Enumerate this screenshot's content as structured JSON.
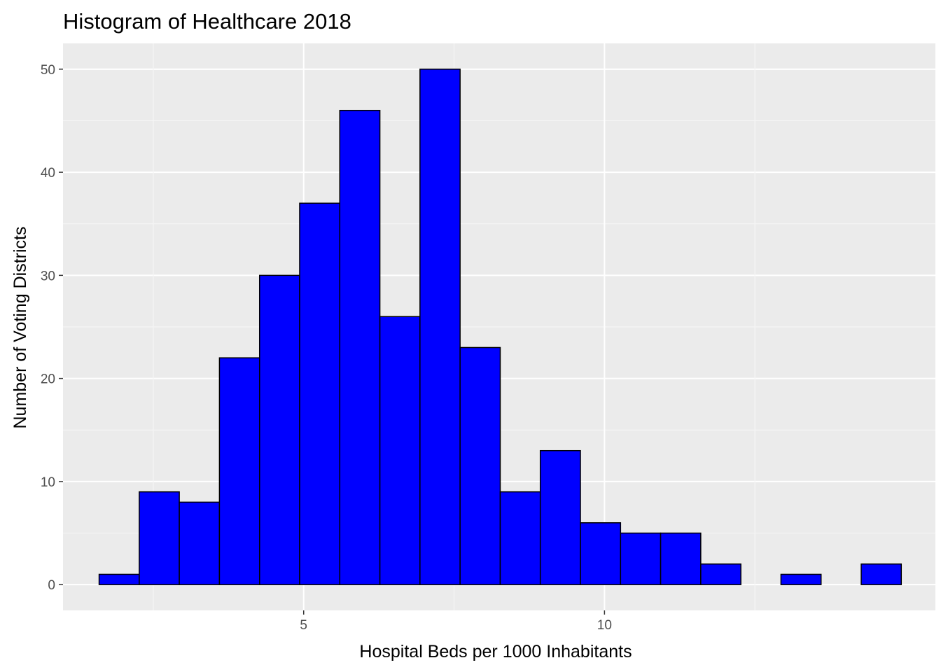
{
  "chart_data": {
    "type": "bar",
    "title": "Histogram of Healthcare 2018",
    "xlabel": "Hospital Beds per 1000 Inhabitants",
    "ylabel": "Number of Voting Districts",
    "bin_width": 0.6667,
    "bins": [
      {
        "x0": 1.6,
        "x1": 2.267,
        "count": 1
      },
      {
        "x0": 2.267,
        "x1": 2.933,
        "count": 9
      },
      {
        "x0": 2.933,
        "x1": 3.6,
        "count": 8
      },
      {
        "x0": 3.6,
        "x1": 4.267,
        "count": 22
      },
      {
        "x0": 4.267,
        "x1": 4.933,
        "count": 30
      },
      {
        "x0": 4.933,
        "x1": 5.6,
        "count": 37
      },
      {
        "x0": 5.6,
        "x1": 6.267,
        "count": 46
      },
      {
        "x0": 6.267,
        "x1": 6.933,
        "count": 26
      },
      {
        "x0": 6.933,
        "x1": 7.6,
        "count": 50
      },
      {
        "x0": 7.6,
        "x1": 8.267,
        "count": 23
      },
      {
        "x0": 8.267,
        "x1": 8.933,
        "count": 9
      },
      {
        "x0": 8.933,
        "x1": 9.6,
        "count": 13
      },
      {
        "x0": 9.6,
        "x1": 10.267,
        "count": 6
      },
      {
        "x0": 10.267,
        "x1": 10.933,
        "count": 5
      },
      {
        "x0": 10.933,
        "x1": 11.6,
        "count": 5
      },
      {
        "x0": 11.6,
        "x1": 12.267,
        "count": 2
      },
      {
        "x0": 12.267,
        "x1": 12.933,
        "count": 0
      },
      {
        "x0": 12.933,
        "x1": 13.6,
        "count": 1
      },
      {
        "x0": 13.6,
        "x1": 14.267,
        "count": 0
      },
      {
        "x0": 14.267,
        "x1": 14.933,
        "count": 2
      }
    ],
    "x_ticks": [
      5,
      10
    ],
    "x_tick_labels": [
      "5",
      "10"
    ],
    "y_ticks": [
      0,
      10,
      20,
      30,
      40,
      50
    ],
    "y_tick_labels": [
      "0",
      "10",
      "20",
      "30",
      "40",
      "50"
    ],
    "xlim": [
      1.0,
      15.5
    ],
    "ylim": [
      -2.5,
      52.5
    ],
    "grid": true,
    "legend": "none",
    "colors": {
      "bar_fill": "#0000ff",
      "bar_stroke": "#000000",
      "panel_background": "#ebebeb",
      "grid_major": "#ffffff",
      "grid_minor": "#f5f5f5",
      "tick_label": "#4d4d4d"
    }
  }
}
